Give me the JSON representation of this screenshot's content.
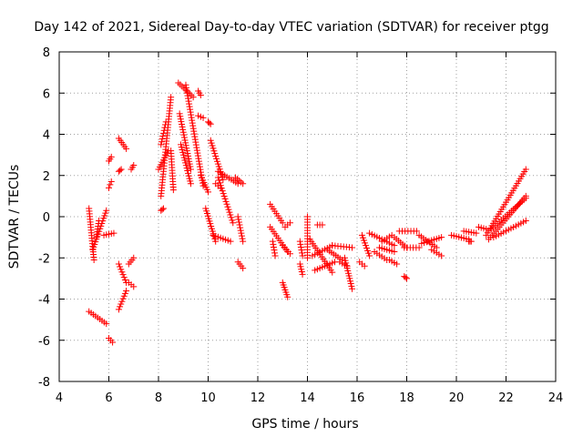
{
  "chart_data": {
    "type": "scatter",
    "title": "Day 142 of 2021, Sidereal Day-to-day VTEC variation (SDTVAR) for receiver ptgg",
    "xlabel": "GPS time / hours",
    "ylabel": "SDTVAR / TECUs",
    "xlim": [
      4,
      24
    ],
    "ylim": [
      -8,
      8
    ],
    "xticks": [
      4,
      6,
      8,
      10,
      12,
      14,
      16,
      18,
      20,
      22,
      24
    ],
    "yticks": [
      -8,
      -6,
      -4,
      -2,
      0,
      2,
      4,
      6,
      8
    ],
    "grid": true,
    "marker": "plus",
    "color": "#ff0000",
    "series": [
      {
        "name": "SDTVAR",
        "segments": [
          {
            "x0": 5.2,
            "y0": 0.4,
            "x1": 5.4,
            "y1": -2.1
          },
          {
            "x0": 5.35,
            "y0": -1.6,
            "x1": 5.9,
            "y1": 0.3
          },
          {
            "x0": 5.5,
            "y0": -1.0,
            "x1": 5.6,
            "y1": -0.2
          },
          {
            "x0": 5.2,
            "y0": -4.6,
            "x1": 5.9,
            "y1": -5.2
          },
          {
            "x0": 5.8,
            "y0": -0.9,
            "x1": 6.2,
            "y1": -0.8
          },
          {
            "x0": 6.0,
            "y0": 1.4,
            "x1": 6.1,
            "y1": 1.7
          },
          {
            "x0": 6.0,
            "y0": 2.7,
            "x1": 6.1,
            "y1": 2.9
          },
          {
            "x0": 6.0,
            "y0": -5.9,
            "x1": 6.15,
            "y1": -6.1
          },
          {
            "x0": 6.4,
            "y0": 3.8,
            "x1": 6.7,
            "y1": 3.3
          },
          {
            "x0": 6.4,
            "y0": 2.2,
            "x1": 6.5,
            "y1": 2.3
          },
          {
            "x0": 6.4,
            "y0": -2.3,
            "x1": 6.7,
            "y1": -3.2
          },
          {
            "x0": 6.4,
            "y0": -4.5,
            "x1": 6.7,
            "y1": -3.6
          },
          {
            "x0": 6.9,
            "y0": 2.3,
            "x1": 7.0,
            "y1": 2.5
          },
          {
            "x0": 6.8,
            "y0": -2.3,
            "x1": 7.0,
            "y1": -2.0
          },
          {
            "x0": 6.8,
            "y0": -3.2,
            "x1": 7.0,
            "y1": -3.4
          },
          {
            "x0": 8.1,
            "y0": 1.0,
            "x1": 8.5,
            "y1": 5.8
          },
          {
            "x0": 8.1,
            "y0": 0.3,
            "x1": 8.2,
            "y1": 0.4
          },
          {
            "x0": 8.0,
            "y0": 2.3,
            "x1": 8.4,
            "y1": 3.2
          },
          {
            "x0": 8.1,
            "y0": 3.5,
            "x1": 8.3,
            "y1": 4.6
          },
          {
            "x0": 8.5,
            "y0": 3.2,
            "x1": 8.6,
            "y1": 1.3
          },
          {
            "x0": 8.8,
            "y0": 6.5,
            "x1": 9.4,
            "y1": 5.8
          },
          {
            "x0": 8.85,
            "y0": 5.0,
            "x1": 9.3,
            "y1": 2.3
          },
          {
            "x0": 9.1,
            "y0": 6.4,
            "x1": 9.8,
            "y1": 1.5
          },
          {
            "x0": 8.9,
            "y0": 3.5,
            "x1": 9.3,
            "y1": 1.6
          },
          {
            "x0": 9.6,
            "y0": 4.9,
            "x1": 9.8,
            "y1": 4.8
          },
          {
            "x0": 9.6,
            "y0": 6.1,
            "x1": 9.7,
            "y1": 5.9
          },
          {
            "x0": 10.0,
            "y0": 4.6,
            "x1": 10.1,
            "y1": 4.5
          },
          {
            "x0": 9.7,
            "y0": 2.0,
            "x1": 10.0,
            "y1": 1.2
          },
          {
            "x0": 10.1,
            "y0": 3.7,
            "x1": 10.6,
            "y1": 1.8
          },
          {
            "x0": 10.4,
            "y0": 2.2,
            "x1": 11.2,
            "y1": 1.6
          },
          {
            "x0": 10.4,
            "y0": 1.9,
            "x1": 11.0,
            "y1": -0.3
          },
          {
            "x0": 9.9,
            "y0": 0.4,
            "x1": 10.3,
            "y1": -1.2
          },
          {
            "x0": 10.2,
            "y0": -0.9,
            "x1": 10.9,
            "y1": -1.2
          },
          {
            "x0": 10.3,
            "y0": 1.6,
            "x1": 10.5,
            "y1": 1.4
          },
          {
            "x0": 11.1,
            "y0": 1.9,
            "x1": 11.4,
            "y1": 1.6
          },
          {
            "x0": 11.2,
            "y0": 0.0,
            "x1": 11.4,
            "y1": -1.2
          },
          {
            "x0": 11.2,
            "y0": -2.2,
            "x1": 11.4,
            "y1": -2.5
          },
          {
            "x0": 12.5,
            "y0": 0.6,
            "x1": 13.0,
            "y1": -0.3
          },
          {
            "x0": 12.5,
            "y0": -0.5,
            "x1": 13.2,
            "y1": -1.7
          },
          {
            "x0": 12.6,
            "y0": -1.2,
            "x1": 12.7,
            "y1": -1.9
          },
          {
            "x0": 13.1,
            "y0": -0.5,
            "x1": 13.3,
            "y1": -0.3
          },
          {
            "x0": 13.0,
            "y0": -1.4,
            "x1": 13.3,
            "y1": -1.8
          },
          {
            "x0": 13.0,
            "y0": -3.2,
            "x1": 13.2,
            "y1": -3.9
          },
          {
            "x0": 13.7,
            "y0": -1.2,
            "x1": 13.8,
            "y1": -1.9
          },
          {
            "x0": 13.7,
            "y0": -2.3,
            "x1": 13.8,
            "y1": -2.8
          },
          {
            "x0": 14.0,
            "y0": 0.0,
            "x1": 14.0,
            "y1": -2.0
          },
          {
            "x0": 14.1,
            "y0": -1.1,
            "x1": 15.0,
            "y1": -2.7
          },
          {
            "x0": 14.2,
            "y0": -1.9,
            "x1": 15.0,
            "y1": -1.4
          },
          {
            "x0": 14.3,
            "y0": -2.6,
            "x1": 15.1,
            "y1": -2.2
          },
          {
            "x0": 14.4,
            "y0": -0.4,
            "x1": 14.6,
            "y1": -0.4
          },
          {
            "x0": 14.8,
            "y0": -1.6,
            "x1": 15.4,
            "y1": -2.1
          },
          {
            "x0": 15.0,
            "y0": -1.4,
            "x1": 15.8,
            "y1": -1.5
          },
          {
            "x0": 15.5,
            "y0": -2.0,
            "x1": 15.8,
            "y1": -3.5
          },
          {
            "x0": 15.3,
            "y0": -2.2,
            "x1": 15.6,
            "y1": -2.4
          },
          {
            "x0": 16.2,
            "y0": -0.9,
            "x1": 16.5,
            "y1": -1.9
          },
          {
            "x0": 16.1,
            "y0": -2.2,
            "x1": 16.3,
            "y1": -2.4
          },
          {
            "x0": 16.5,
            "y0": -0.8,
            "x1": 17.5,
            "y1": -1.4
          },
          {
            "x0": 16.7,
            "y0": -1.7,
            "x1": 17.2,
            "y1": -2.1
          },
          {
            "x0": 16.9,
            "y0": -1.5,
            "x1": 17.5,
            "y1": -1.7
          },
          {
            "x0": 17.3,
            "y0": -2.1,
            "x1": 17.6,
            "y1": -2.3
          },
          {
            "x0": 17.0,
            "y0": -1.2,
            "x1": 17.4,
            "y1": -0.9
          },
          {
            "x0": 17.7,
            "y0": -0.7,
            "x1": 18.4,
            "y1": -0.7
          },
          {
            "x0": 17.5,
            "y0": -1.0,
            "x1": 18.0,
            "y1": -1.5
          },
          {
            "x0": 17.9,
            "y0": -1.5,
            "x1": 18.5,
            "y1": -1.5
          },
          {
            "x0": 17.9,
            "y0": -2.9,
            "x1": 18.0,
            "y1": -3.0
          },
          {
            "x0": 18.5,
            "y0": -0.9,
            "x1": 19.2,
            "y1": -1.5
          },
          {
            "x0": 18.6,
            "y0": -1.3,
            "x1": 19.4,
            "y1": -1.0
          },
          {
            "x0": 19.0,
            "y0": -1.6,
            "x1": 19.4,
            "y1": -1.9
          },
          {
            "x0": 19.8,
            "y0": -0.9,
            "x1": 20.5,
            "y1": -1.1
          },
          {
            "x0": 20.3,
            "y0": -0.7,
            "x1": 20.8,
            "y1": -0.8
          },
          {
            "x0": 20.5,
            "y0": -1.2,
            "x1": 20.6,
            "y1": -1.2
          },
          {
            "x0": 20.9,
            "y0": -0.5,
            "x1": 21.2,
            "y1": -0.6
          },
          {
            "x0": 21.2,
            "y0": -0.9,
            "x1": 22.8,
            "y1": 2.3
          },
          {
            "x0": 21.3,
            "y0": -1.1,
            "x1": 22.8,
            "y1": 1.0
          },
          {
            "x0": 21.4,
            "y0": -0.6,
            "x1": 22.8,
            "y1": 0.9
          },
          {
            "x0": 21.5,
            "y0": -1.0,
            "x1": 22.8,
            "y1": -0.2
          }
        ]
      }
    ]
  }
}
